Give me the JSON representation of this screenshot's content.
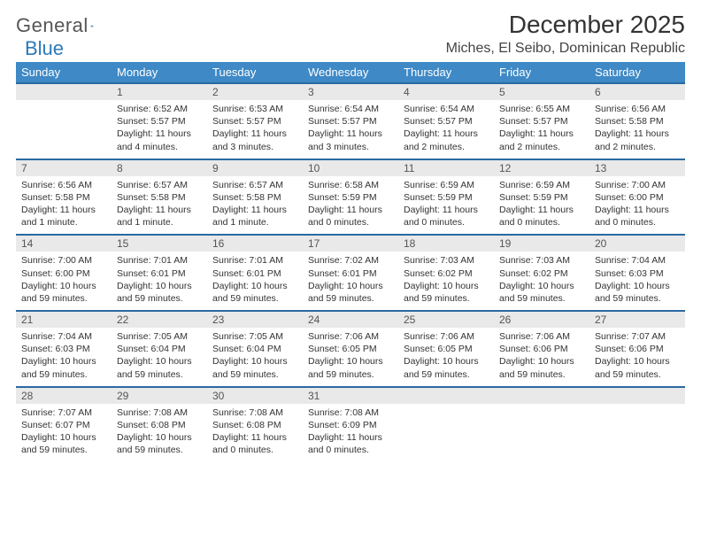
{
  "brand": {
    "general": "General",
    "blue": "Blue"
  },
  "header": {
    "title": "December 2025",
    "location": "Miches, El Seibo, Dominican Republic"
  },
  "daynames": [
    "Sunday",
    "Monday",
    "Tuesday",
    "Wednesday",
    "Thursday",
    "Friday",
    "Saturday"
  ],
  "colors": {
    "header_bg": "#3e89c6",
    "rule": "#2a6aa0",
    "daynum_bg": "#e9e9e9"
  },
  "calendar": {
    "startWeekday": 1,
    "daysInMonth": 31,
    "days": {
      "1": {
        "sunrise": "6:52 AM",
        "sunset": "5:57 PM",
        "daylight": "11 hours and 4 minutes."
      },
      "2": {
        "sunrise": "6:53 AM",
        "sunset": "5:57 PM",
        "daylight": "11 hours and 3 minutes."
      },
      "3": {
        "sunrise": "6:54 AM",
        "sunset": "5:57 PM",
        "daylight": "11 hours and 3 minutes."
      },
      "4": {
        "sunrise": "6:54 AM",
        "sunset": "5:57 PM",
        "daylight": "11 hours and 2 minutes."
      },
      "5": {
        "sunrise": "6:55 AM",
        "sunset": "5:57 PM",
        "daylight": "11 hours and 2 minutes."
      },
      "6": {
        "sunrise": "6:56 AM",
        "sunset": "5:58 PM",
        "daylight": "11 hours and 2 minutes."
      },
      "7": {
        "sunrise": "6:56 AM",
        "sunset": "5:58 PM",
        "daylight": "11 hours and 1 minute."
      },
      "8": {
        "sunrise": "6:57 AM",
        "sunset": "5:58 PM",
        "daylight": "11 hours and 1 minute."
      },
      "9": {
        "sunrise": "6:57 AM",
        "sunset": "5:58 PM",
        "daylight": "11 hours and 1 minute."
      },
      "10": {
        "sunrise": "6:58 AM",
        "sunset": "5:59 PM",
        "daylight": "11 hours and 0 minutes."
      },
      "11": {
        "sunrise": "6:59 AM",
        "sunset": "5:59 PM",
        "daylight": "11 hours and 0 minutes."
      },
      "12": {
        "sunrise": "6:59 AM",
        "sunset": "5:59 PM",
        "daylight": "11 hours and 0 minutes."
      },
      "13": {
        "sunrise": "7:00 AM",
        "sunset": "6:00 PM",
        "daylight": "11 hours and 0 minutes."
      },
      "14": {
        "sunrise": "7:00 AM",
        "sunset": "6:00 PM",
        "daylight": "10 hours and 59 minutes."
      },
      "15": {
        "sunrise": "7:01 AM",
        "sunset": "6:01 PM",
        "daylight": "10 hours and 59 minutes."
      },
      "16": {
        "sunrise": "7:01 AM",
        "sunset": "6:01 PM",
        "daylight": "10 hours and 59 minutes."
      },
      "17": {
        "sunrise": "7:02 AM",
        "sunset": "6:01 PM",
        "daylight": "10 hours and 59 minutes."
      },
      "18": {
        "sunrise": "7:03 AM",
        "sunset": "6:02 PM",
        "daylight": "10 hours and 59 minutes."
      },
      "19": {
        "sunrise": "7:03 AM",
        "sunset": "6:02 PM",
        "daylight": "10 hours and 59 minutes."
      },
      "20": {
        "sunrise": "7:04 AM",
        "sunset": "6:03 PM",
        "daylight": "10 hours and 59 minutes."
      },
      "21": {
        "sunrise": "7:04 AM",
        "sunset": "6:03 PM",
        "daylight": "10 hours and 59 minutes."
      },
      "22": {
        "sunrise": "7:05 AM",
        "sunset": "6:04 PM",
        "daylight": "10 hours and 59 minutes."
      },
      "23": {
        "sunrise": "7:05 AM",
        "sunset": "6:04 PM",
        "daylight": "10 hours and 59 minutes."
      },
      "24": {
        "sunrise": "7:06 AM",
        "sunset": "6:05 PM",
        "daylight": "10 hours and 59 minutes."
      },
      "25": {
        "sunrise": "7:06 AM",
        "sunset": "6:05 PM",
        "daylight": "10 hours and 59 minutes."
      },
      "26": {
        "sunrise": "7:06 AM",
        "sunset": "6:06 PM",
        "daylight": "10 hours and 59 minutes."
      },
      "27": {
        "sunrise": "7:07 AM",
        "sunset": "6:06 PM",
        "daylight": "10 hours and 59 minutes."
      },
      "28": {
        "sunrise": "7:07 AM",
        "sunset": "6:07 PM",
        "daylight": "10 hours and 59 minutes."
      },
      "29": {
        "sunrise": "7:08 AM",
        "sunset": "6:08 PM",
        "daylight": "10 hours and 59 minutes."
      },
      "30": {
        "sunrise": "7:08 AM",
        "sunset": "6:08 PM",
        "daylight": "11 hours and 0 minutes."
      },
      "31": {
        "sunrise": "7:08 AM",
        "sunset": "6:09 PM",
        "daylight": "11 hours and 0 minutes."
      }
    }
  },
  "labels": {
    "sunrise": "Sunrise:",
    "sunset": "Sunset:",
    "daylight": "Daylight:"
  }
}
